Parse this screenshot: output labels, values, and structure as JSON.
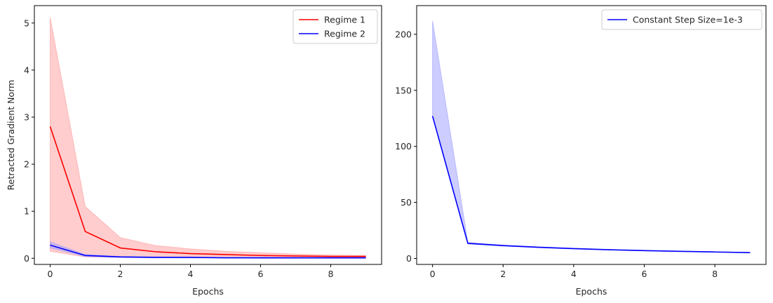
{
  "chart_data": [
    {
      "type": "line",
      "xlabel": "Epochs",
      "ylabel": "Retracted Gradient Norm",
      "xlim": [
        -0.45,
        9.45
      ],
      "ylim": [
        -0.13,
        5.37
      ],
      "x_ticks": [
        0,
        2,
        4,
        6,
        8
      ],
      "y_ticks": [
        0,
        1,
        2,
        3,
        4,
        5
      ],
      "grid": false,
      "legend_position": "top-right",
      "x": [
        0,
        1,
        2,
        3,
        4,
        5,
        6,
        7,
        8,
        9
      ],
      "series": [
        {
          "name": "Regime 1",
          "color": "#ff0000",
          "band_color": "#ff9c9c",
          "values": [
            2.8,
            0.57,
            0.22,
            0.14,
            0.1,
            0.08,
            0.06,
            0.05,
            0.04,
            0.04
          ],
          "upper": [
            5.12,
            1.1,
            0.44,
            0.27,
            0.2,
            0.15,
            0.12,
            0.09,
            0.07,
            0.06
          ],
          "lower": [
            0.15,
            0.03,
            0.02,
            0.02,
            0.01,
            0.01,
            0.01,
            0.01,
            0.01,
            0.01
          ]
        },
        {
          "name": "Regime 2",
          "color": "#0000ff",
          "band_color": "#9c9cff",
          "values": [
            0.28,
            0.06,
            0.03,
            0.02,
            0.02,
            0.01,
            0.01,
            0.01,
            0.01,
            0.01
          ],
          "upper": [
            0.35,
            0.08,
            0.04,
            0.03,
            0.02,
            0.02,
            0.02,
            0.01,
            0.01,
            0.01
          ],
          "lower": [
            0.22,
            0.04,
            0.02,
            0.01,
            0.01,
            0.01,
            0.0,
            0.0,
            0.0,
            0.0
          ]
        }
      ]
    },
    {
      "type": "line",
      "xlabel": "Epochs",
      "ylabel": "",
      "xlim": [
        -0.45,
        9.45
      ],
      "ylim": [
        -5.3,
        225.6
      ],
      "x_ticks": [
        0,
        2,
        4,
        6,
        8
      ],
      "y_ticks": [
        0,
        50,
        100,
        150,
        200
      ],
      "grid": false,
      "legend_position": "top-right",
      "x": [
        0,
        1,
        2,
        3,
        4,
        5,
        6,
        7,
        8,
        9
      ],
      "series": [
        {
          "name": "Constant Step Size=1e-3",
          "color": "#0000ff",
          "band_color": "#9c9cff",
          "values": [
            127,
            13.5,
            11.5,
            10.0,
            8.8,
            7.8,
            7.0,
            6.4,
            5.8,
            5.2
          ],
          "upper": [
            212,
            14.3,
            12.0,
            10.4,
            9.1,
            8.1,
            7.3,
            6.6,
            6.0,
            5.4
          ],
          "lower": [
            127,
            13.0,
            11.1,
            9.7,
            8.5,
            7.6,
            6.8,
            6.2,
            5.6,
            5.0
          ]
        }
      ]
    }
  ]
}
